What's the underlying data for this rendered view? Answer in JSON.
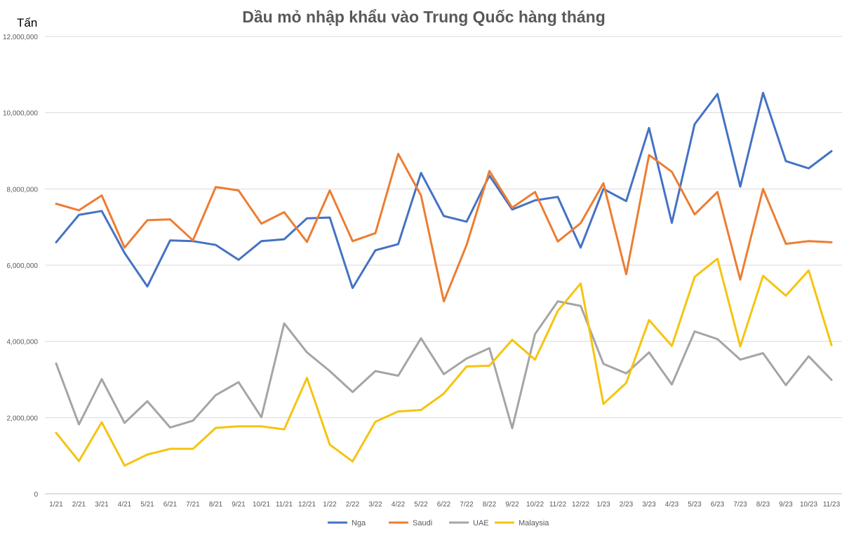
{
  "chart_data": {
    "type": "line",
    "title": "Dầu mỏ nhập khẩu vào Trung Quốc hàng tháng",
    "ylabel": "Tấn",
    "xlabel": "",
    "ylim": [
      0,
      12000000
    ],
    "yticks": [
      "0",
      "2,000,000",
      "4,000,000",
      "6,000,000",
      "8,000,000",
      "10,000,000",
      "12,000,000"
    ],
    "ytick_values": [
      0,
      2000000,
      4000000,
      6000000,
      8000000,
      10000000,
      12000000
    ],
    "grid": true,
    "legend_position": "bottom",
    "categories": [
      "1/21",
      "2/21",
      "3/21",
      "4/21",
      "5/21",
      "6/21",
      "7/21",
      "8/21",
      "9/21",
      "10/21",
      "11/21",
      "12/21",
      "1/22",
      "2/22",
      "3/22",
      "4/22",
      "5/22",
      "6/22",
      "7/22",
      "8/22",
      "9/22",
      "10/22",
      "11/22",
      "12/22",
      "1/23",
      "2/23",
      "3/23",
      "4/23",
      "5/23",
      "6/23",
      "7/23",
      "8/23",
      "9/23",
      "10/23",
      "11/23"
    ],
    "series": [
      {
        "name": "Nga",
        "color": "#4472c4",
        "values": [
          6600000,
          7320000,
          7420000,
          6320000,
          5440000,
          6650000,
          6630000,
          6530000,
          6140000,
          6630000,
          6680000,
          7230000,
          7250000,
          5400000,
          6390000,
          6550000,
          8420000,
          7290000,
          7140000,
          8350000,
          7460000,
          7700000,
          7790000,
          6460000,
          8000000,
          7680000,
          9600000,
          7110000,
          9700000,
          10490000,
          8060000,
          10520000,
          8730000,
          8540000,
          8990000
        ]
      },
      {
        "name": "Saudi",
        "color": "#ed7d31",
        "values": [
          7610000,
          7440000,
          7830000,
          6460000,
          7180000,
          7200000,
          6650000,
          8050000,
          7960000,
          7090000,
          7390000,
          6610000,
          7960000,
          6630000,
          6840000,
          8920000,
          7830000,
          5050000,
          6530000,
          8470000,
          7510000,
          7920000,
          6620000,
          7100000,
          8150000,
          5760000,
          8890000,
          8450000,
          7330000,
          7920000,
          5620000,
          8000000,
          6560000,
          6630000,
          6600000
        ]
      },
      {
        "name": "UAE",
        "color": "#a5a5a5",
        "values": [
          3420000,
          1820000,
          3010000,
          1860000,
          2430000,
          1740000,
          1920000,
          2590000,
          2930000,
          2010000,
          4470000,
          3710000,
          3220000,
          2670000,
          3220000,
          3100000,
          4080000,
          3140000,
          3550000,
          3820000,
          1720000,
          4190000,
          5050000,
          4930000,
          3410000,
          3160000,
          3710000,
          2870000,
          4260000,
          4060000,
          3520000,
          3690000,
          2850000,
          3610000,
          2990000
        ]
      },
      {
        "name": "Malaysia",
        "color": "#f5c40f",
        "values": [
          1600000,
          860000,
          1880000,
          740000,
          1030000,
          1180000,
          1180000,
          1730000,
          1770000,
          1770000,
          1690000,
          3040000,
          1290000,
          850000,
          1890000,
          2160000,
          2200000,
          2630000,
          3340000,
          3360000,
          4040000,
          3520000,
          4800000,
          5520000,
          2360000,
          2910000,
          4560000,
          3880000,
          5690000,
          6170000,
          3870000,
          5720000,
          5200000,
          5860000,
          3900000
        ]
      }
    ]
  }
}
